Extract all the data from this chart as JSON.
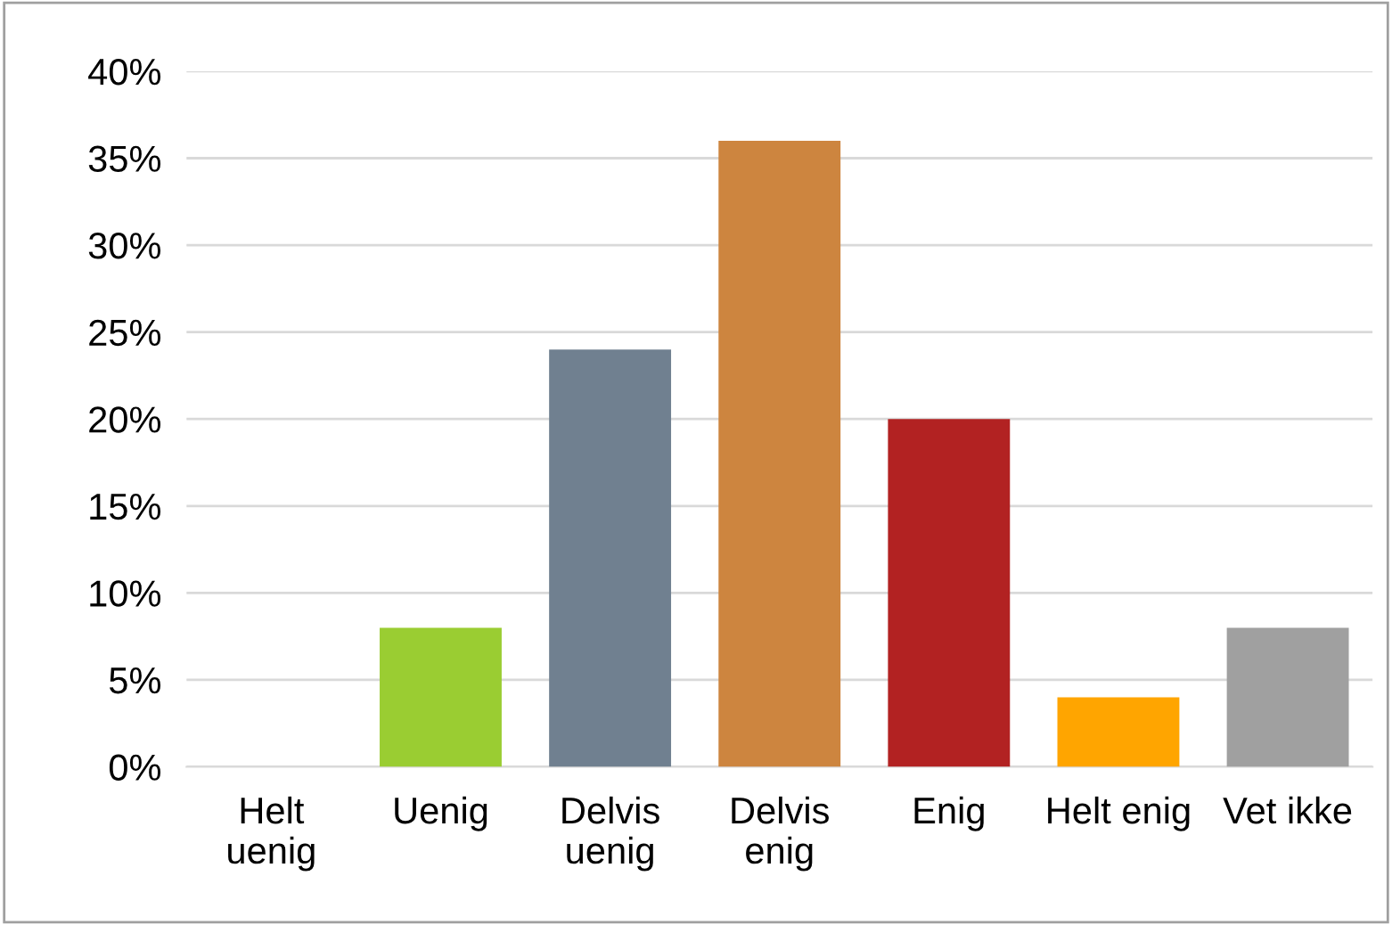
{
  "chart_data": {
    "type": "bar",
    "categories": [
      "Helt\nuenig",
      "Uenig",
      "Delvis\nuenig",
      "Delvis\nenig",
      "Enig",
      "Helt enig",
      "Vet ikke"
    ],
    "values": [
      0,
      8,
      24,
      36,
      20,
      4,
      8
    ],
    "colors": [
      "#9acd32",
      "#9acd32",
      "#708090",
      "#cd853f",
      "#b22222",
      "#ffa500",
      "#a0a0a0"
    ],
    "ylim": [
      0,
      40
    ],
    "yticks": [
      {
        "value": 0,
        "label": "0%"
      },
      {
        "value": 5,
        "label": "5%"
      },
      {
        "value": 10,
        "label": "10%"
      },
      {
        "value": 15,
        "label": "15%"
      },
      {
        "value": 20,
        "label": "20%"
      },
      {
        "value": 25,
        "label": "25%"
      },
      {
        "value": 30,
        "label": "30%"
      },
      {
        "value": 35,
        "label": "35%"
      },
      {
        "value": 40,
        "label": "40%"
      }
    ],
    "grid": "y"
  }
}
